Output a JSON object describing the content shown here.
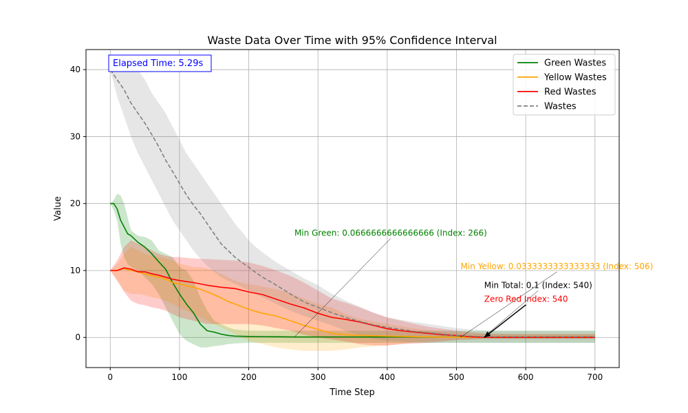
{
  "chart_data": {
    "type": "line",
    "title": "Waste Data Over Time with 95% Confidence Interval",
    "xlabel": "Time Step",
    "ylabel": "Value",
    "xlim": [
      -35,
      735
    ],
    "ylim": [
      -4.5,
      43
    ],
    "xticks": [
      0,
      100,
      200,
      300,
      400,
      500,
      600,
      700
    ],
    "yticks": [
      0,
      10,
      20,
      30,
      40
    ],
    "grid": true,
    "legend_position": "top-right",
    "elapsed_label": "Elapsed Time: 5.29s",
    "series": [
      {
        "name": "Green Wastes",
        "color": "#008000",
        "style": "solid",
        "x": [
          0,
          5,
          10,
          15,
          20,
          25,
          30,
          40,
          50,
          60,
          70,
          80,
          90,
          100,
          110,
          120,
          130,
          140,
          150,
          160,
          170,
          180,
          200,
          250,
          266,
          300,
          400,
          500,
          600,
          700
        ],
        "y": [
          20,
          20,
          19.2,
          17.5,
          16.5,
          15.5,
          15.2,
          14.2,
          13.5,
          12.5,
          11.3,
          10.2,
          8.2,
          6.5,
          5,
          3.7,
          2,
          1,
          0.8,
          0.5,
          0.3,
          0.2,
          0.15,
          0.1,
          0.067,
          0.067,
          0.067,
          0.067,
          0.067,
          0.067
        ],
        "upper": [
          20,
          20.5,
          21.5,
          21.2,
          20,
          18,
          16,
          15.2,
          15,
          14.5,
          13,
          12.5,
          12,
          10.5,
          10,
          8.5,
          6,
          4,
          2.5,
          2,
          1.5,
          1.2,
          1,
          1,
          1,
          1,
          1,
          1,
          1,
          1
        ],
        "lower": [
          20,
          19,
          17.5,
          14,
          12,
          11,
          10.5,
          10,
          9,
          8,
          6.5,
          4.5,
          2.5,
          0.5,
          -0.5,
          -1,
          -1.5,
          -1.5,
          -1.3,
          -1.2,
          -1,
          -0.9,
          -0.8,
          -0.8,
          -0.8,
          -0.8,
          -0.8,
          -0.8,
          -0.8,
          -0.8
        ]
      },
      {
        "name": "Yellow Wastes",
        "color": "#ffa500",
        "style": "solid",
        "x": [
          0,
          10,
          20,
          30,
          40,
          50,
          60,
          70,
          80,
          90,
          100,
          110,
          120,
          130,
          140,
          150,
          160,
          170,
          180,
          190,
          200,
          220,
          240,
          260,
          280,
          300,
          320,
          340,
          360,
          400,
          450,
          506,
          550,
          600,
          700
        ],
        "y": [
          10,
          10,
          10.3,
          10,
          9.8,
          9.5,
          9.2,
          9,
          8.7,
          8.2,
          8,
          7.7,
          7.5,
          7.2,
          6.8,
          6.4,
          5.9,
          5.4,
          5,
          4.6,
          4.2,
          3.6,
          3.2,
          2.5,
          1.8,
          1.2,
          0.6,
          0.4,
          0.3,
          0.2,
          0.1,
          0.033,
          0.033,
          0.033,
          0.033
        ],
        "upper": [
          10,
          11,
          12.5,
          13.5,
          13,
          12.5,
          12.2,
          12,
          11.8,
          11.5,
          11,
          10.8,
          10.5,
          10.5,
          10.3,
          10,
          9.5,
          9,
          8.5,
          8.2,
          8,
          7.6,
          7.2,
          6.6,
          5.8,
          5,
          4.5,
          3.5,
          2.8,
          2,
          1.2,
          0.6,
          0.5,
          0.5,
          0.5
        ],
        "lower": [
          10,
          8.5,
          7,
          6.5,
          6.5,
          6.3,
          6,
          5.8,
          5.5,
          5,
          4.5,
          4,
          3.5,
          3,
          2.5,
          2,
          1.5,
          1,
          0.5,
          0,
          -0.5,
          -1,
          -1.5,
          -1.8,
          -2,
          -2,
          -2,
          -1.8,
          -1.5,
          -1.2,
          -0.6,
          -0.3,
          -0.2,
          -0.2,
          -0.2
        ]
      },
      {
        "name": "Red Wastes",
        "color": "#ff0000",
        "style": "solid",
        "x": [
          0,
          10,
          20,
          30,
          40,
          50,
          60,
          70,
          80,
          90,
          100,
          120,
          140,
          160,
          180,
          200,
          220,
          240,
          260,
          280,
          300,
          320,
          340,
          360,
          380,
          400,
          420,
          440,
          460,
          480,
          500,
          520,
          540,
          600,
          700
        ],
        "y": [
          10,
          10,
          10.4,
          10.2,
          9.8,
          9.8,
          9.5,
          9.3,
          9,
          8.7,
          8.5,
          8.2,
          7.8,
          7.5,
          7.3,
          6.8,
          6.4,
          5.7,
          5,
          4.4,
          3.6,
          3,
          2.7,
          2.3,
          1.8,
          1.3,
          1,
          0.8,
          0.6,
          0.4,
          0.3,
          0.1,
          0,
          0,
          0
        ],
        "upper": [
          10,
          11.5,
          13.5,
          14.5,
          14,
          13.5,
          13,
          12.5,
          12.2,
          12,
          12,
          11.8,
          11.7,
          11.6,
          11.5,
          11.2,
          10.7,
          10,
          9.2,
          8.2,
          7,
          5.8,
          5.2,
          4.5,
          3.7,
          3,
          2.5,
          2,
          1.6,
          1.3,
          1,
          0.8,
          0.6,
          0.5,
          0.5
        ],
        "lower": [
          10,
          8.5,
          6.8,
          5.5,
          5,
          4.8,
          4.5,
          4.3,
          4,
          3.5,
          3,
          2.5,
          2,
          2,
          2,
          2,
          1.8,
          1.4,
          1,
          0.4,
          0,
          -0.3,
          -0.6,
          -1,
          -1.2,
          -1.2,
          -1,
          -0.9,
          -0.8,
          -0.6,
          -0.4,
          -0.3,
          -0.2,
          -0.2,
          -0.2
        ]
      },
      {
        "name": "Wastes",
        "color": "#808080",
        "style": "dashed",
        "x": [
          0,
          10,
          20,
          30,
          40,
          50,
          60,
          70,
          80,
          90,
          100,
          110,
          120,
          130,
          140,
          150,
          160,
          170,
          180,
          190,
          200,
          210,
          220,
          240,
          260,
          280,
          300,
          320,
          340,
          360,
          380,
          400,
          420,
          440,
          460,
          480,
          500,
          520,
          540,
          600,
          700
        ],
        "y": [
          40,
          38.5,
          37,
          35,
          33.5,
          32,
          30.3,
          28.5,
          26.5,
          24.8,
          23,
          21.3,
          19.8,
          18.5,
          17,
          15.5,
          14,
          13,
          12,
          11.2,
          10.5,
          9.7,
          9,
          7.8,
          6.5,
          5.3,
          4.5,
          3.7,
          3,
          2.4,
          1.9,
          1.5,
          1.2,
          0.9,
          0.7,
          0.5,
          0.3,
          0.2,
          0.1,
          0.1,
          0.1
        ],
        "upper": [
          40,
          41,
          41.5,
          41,
          40,
          38.5,
          36.5,
          35,
          33.5,
          31.5,
          29.5,
          27.5,
          26,
          24.5,
          23,
          21.5,
          20,
          18.5,
          17,
          15.8,
          14.5,
          13.5,
          12.7,
          11.2,
          10,
          8.8,
          7.8,
          6.5,
          5.5,
          4.6,
          3.7,
          3,
          2.6,
          2.3,
          2,
          1.7,
          1.4,
          1.2,
          1,
          1,
          1
        ],
        "lower": [
          40,
          36,
          33,
          30,
          27.5,
          25.5,
          23.5,
          21.5,
          19.5,
          17.5,
          16,
          14.5,
          13,
          11.8,
          10.7,
          9.8,
          9,
          8.5,
          8,
          7.5,
          7,
          6.5,
          6,
          5,
          4,
          3.2,
          2.5,
          1.8,
          1,
          0.3,
          -0.2,
          -0.5,
          -0.6,
          -0.7,
          -0.8,
          -0.8,
          -0.8,
          -0.8,
          -0.8,
          -0.8,
          -0.8
        ]
      }
    ],
    "annotations": [
      {
        "id": "green",
        "text": "Min Green: 0.0666666666666666 (Index: 266)",
        "color": "#008000",
        "x": 266,
        "y": 0.067,
        "tx": 266,
        "ty": 15.2,
        "arrow": "thin"
      },
      {
        "id": "yellow",
        "text": "Min Yellow: 0.0333333333333333 (Index: 506)",
        "color": "#ffa500",
        "x": 506,
        "y": 0.033,
        "tx": 506,
        "ty": 10.2,
        "arrow": "thin"
      },
      {
        "id": "total",
        "text": "Min Total: 0.1 (Index: 540)",
        "color": "#000000",
        "x": 540,
        "y": 0.1,
        "tx": 540,
        "ty": 7.4,
        "arrow": "thin"
      },
      {
        "id": "red",
        "text": "Zero Red Index: 540",
        "color": "#ff0000",
        "x": 540,
        "y": 0,
        "tx": 540,
        "ty": 5.3,
        "arrow": "bold"
      }
    ]
  }
}
